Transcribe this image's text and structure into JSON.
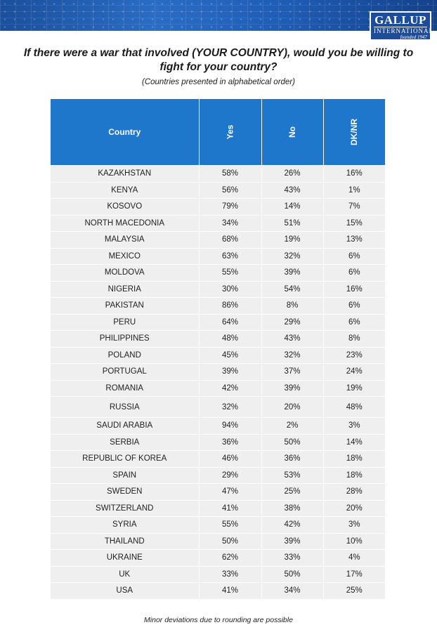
{
  "header": {
    "logo": {
      "name": "GALLUP",
      "sub": "INTERNATIONAL",
      "founded": "founded 1947"
    }
  },
  "title": "If there were a war that involved (YOUR COUNTRY), would you be willing to fight for your country?",
  "subtitle": "(Countries presented in alphabetical order)",
  "table": {
    "columns": [
      "Country",
      "Yes",
      "No",
      "DK/NR"
    ],
    "rows": [
      [
        "KAZAKHSTAN",
        "58%",
        "26%",
        "16%"
      ],
      [
        "KENYA",
        "56%",
        "43%",
        "1%"
      ],
      [
        "KOSOVO",
        "79%",
        "14%",
        "7%"
      ],
      [
        "NORTH MACEDONIA",
        "34%",
        "51%",
        "15%"
      ],
      [
        "MALAYSIA",
        "68%",
        "19%",
        "13%"
      ],
      [
        "MEXICO",
        "63%",
        "32%",
        "6%"
      ],
      [
        "MOLDOVA",
        "55%",
        "39%",
        "6%"
      ],
      [
        "NIGERIA",
        "30%",
        "54%",
        "16%"
      ],
      [
        "PAKISTAN",
        "86%",
        "8%",
        "6%"
      ],
      [
        "PERU",
        "64%",
        "29%",
        "6%"
      ],
      [
        "PHILIPPINES",
        "48%",
        "43%",
        "8%"
      ],
      [
        "POLAND",
        "45%",
        "32%",
        "23%"
      ],
      [
        "PORTUGAL",
        "39%",
        "37%",
        "24%"
      ],
      [
        "ROMANIA",
        "42%",
        "39%",
        "19%"
      ],
      [
        "RUSSIA",
        "32%",
        "20%",
        "48%"
      ],
      [
        "SAUDI ARABIA",
        "94%",
        "2%",
        "3%"
      ],
      [
        "SERBIA",
        "36%",
        "50%",
        "14%"
      ],
      [
        "REPUBLIC OF KOREA",
        "46%",
        "36%",
        "18%"
      ],
      [
        "SPAIN",
        "29%",
        "53%",
        "18%"
      ],
      [
        "SWEDEN",
        "47%",
        "25%",
        "28%"
      ],
      [
        "SWITZERLAND",
        "41%",
        "38%",
        "20%"
      ],
      [
        "SYRIA",
        "55%",
        "42%",
        "3%"
      ],
      [
        "THAILAND",
        "50%",
        "39%",
        "10%"
      ],
      [
        "UKRAINE",
        "62%",
        "33%",
        "4%"
      ],
      [
        "UK",
        "33%",
        "50%",
        "17%"
      ],
      [
        "USA",
        "41%",
        "34%",
        "25%"
      ]
    ]
  },
  "footnote": "Minor deviations due to rounding are possible",
  "colors": {
    "header_blue": "#1f77cc",
    "row_grey": "#efefef",
    "banner_blue": "#1a4f9c"
  }
}
